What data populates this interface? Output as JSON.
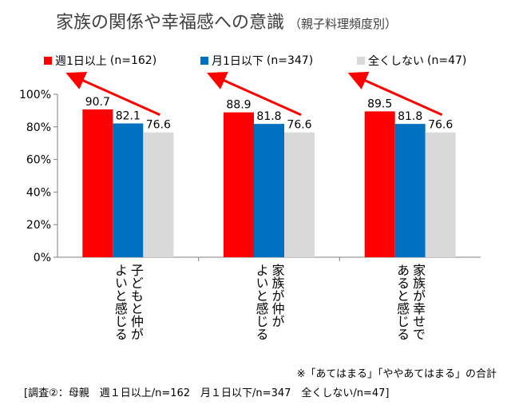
{
  "header": {
    "title": "家族の関係や幸福感への意識",
    "subtitle": "（親子料理頻度別）"
  },
  "legend": [
    {
      "label": "週1日以上",
      "n": "(n=162)",
      "color": "#FF0000"
    },
    {
      "label": "月1日以下",
      "n": "(n=347)",
      "color": "#0070C0"
    },
    {
      "label": "全くしない",
      "n": "(n=47)",
      "color": "#D9D9D9"
    }
  ],
  "note": "※「あてはまる」「ややあてはまる」の合計",
  "footer": "[調査②：母親　週１日以上/n=162　月１日以下/n=347　全くしない/n=47]",
  "chart_data": {
    "type": "bar",
    "categories": [
      "子どもと仲がよいと感じる",
      "家族が仲がよいと感じる",
      "家族が幸せであると感じる"
    ],
    "category_lines": [
      [
        "子どもと仲が",
        "よいと感じる"
      ],
      [
        "家族が仲が",
        "よいと感じる"
      ],
      [
        "家族が幸せで",
        "あると感じる"
      ]
    ],
    "series": [
      {
        "name": "週1日以上 (n=162)",
        "values": [
          90.7,
          88.9,
          89.5
        ],
        "color": "#FF0000"
      },
      {
        "name": "月1日以下 (n=347)",
        "values": [
          82.1,
          81.8,
          81.8
        ],
        "color": "#0070C0"
      },
      {
        "name": "全くしない (n=47)",
        "values": [
          76.6,
          76.6,
          76.6
        ],
        "color": "#D9D9D9"
      }
    ],
    "ylim": [
      0,
      100
    ],
    "yticks": [
      "0%",
      "20%",
      "40%",
      "60%",
      "80%",
      "100%"
    ],
    "value_labels": [
      [
        "90.7",
        "88.9",
        "89.5"
      ],
      [
        "82.1",
        "81.8",
        "81.8"
      ],
      [
        "76.6",
        "76.6",
        "76.6"
      ]
    ],
    "grid": false,
    "legend_position": "top",
    "annotation_arrow_color": "#FF0000"
  }
}
